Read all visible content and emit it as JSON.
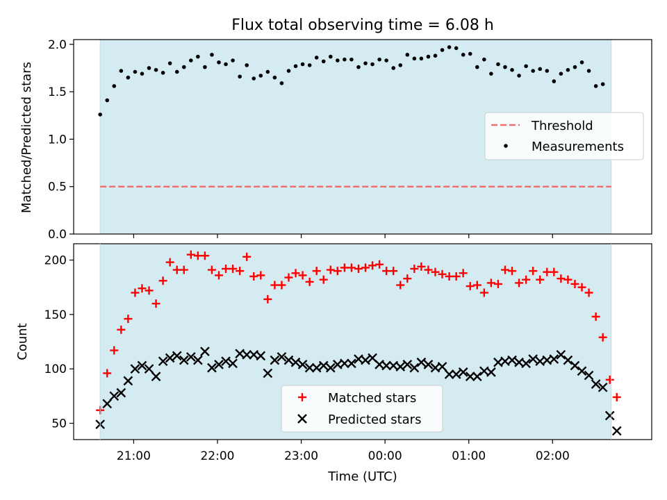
{
  "figure": {
    "title": "Flux total observing time = 6.08 h",
    "xlabel": "Time (UTC)",
    "x_tick_labels": [
      "21:00",
      "22:00",
      "23:00",
      "00:00",
      "01:00",
      "02:00"
    ],
    "shade_color": "#d4ebf1"
  },
  "chart_data": [
    {
      "type": "scatter",
      "panel": "top",
      "title": "Flux total observing time = 6.08 h",
      "ylabel": "Matched/Predicted stars",
      "xlabel": "",
      "x_axis": "time (UTC)",
      "xlim": [
        "20:17",
        "03:11"
      ],
      "ylim": [
        0,
        2.05
      ],
      "yticks": [
        0.0,
        0.5,
        1.0,
        1.5,
        2.0
      ],
      "ytick_labels": [
        "0.0",
        "0.5",
        "1.0",
        "1.5",
        "2.0"
      ],
      "shaded_range": [
        "20:36",
        "02:42"
      ],
      "legend": {
        "placement": "center-right",
        "entries": [
          "Threshold",
          "Measurements"
        ]
      },
      "series": [
        {
          "name": "Threshold",
          "kind": "line",
          "style": "dashed",
          "color": "#f07070",
          "x": [
            "20:36",
            "02:42"
          ],
          "values": [
            0.5,
            0.5
          ]
        },
        {
          "name": "Measurements",
          "kind": "scatter",
          "marker": "dot",
          "color": "#000000",
          "x": [
            "20:36",
            "20:41",
            "20:46",
            "20:51",
            "20:56",
            "21:01",
            "21:06",
            "21:11",
            "21:16",
            "21:21",
            "21:26",
            "21:31",
            "21:36",
            "21:41",
            "21:46",
            "21:51",
            "21:56",
            "22:01",
            "22:06",
            "22:11",
            "22:16",
            "22:21",
            "22:26",
            "22:31",
            "22:36",
            "22:41",
            "22:46",
            "22:51",
            "22:56",
            "23:01",
            "23:06",
            "23:11",
            "23:16",
            "23:21",
            "23:26",
            "23:31",
            "23:36",
            "23:41",
            "23:46",
            "23:51",
            "23:56",
            "00:01",
            "00:06",
            "00:11",
            "00:16",
            "00:21",
            "00:26",
            "00:31",
            "00:36",
            "00:41",
            "00:46",
            "00:51",
            "00:56",
            "01:01",
            "01:06",
            "01:11",
            "01:16",
            "01:21",
            "01:26",
            "01:31",
            "01:36",
            "01:41",
            "01:46",
            "01:51",
            "01:56",
            "02:01",
            "02:06",
            "02:11",
            "02:16",
            "02:21",
            "02:26",
            "02:31",
            "02:36"
          ],
          "values": [
            1.26,
            1.41,
            1.56,
            1.72,
            1.65,
            1.71,
            1.69,
            1.75,
            1.73,
            1.7,
            1.8,
            1.71,
            1.76,
            1.83,
            1.87,
            1.76,
            1.89,
            1.81,
            1.79,
            1.83,
            1.66,
            1.78,
            1.64,
            1.67,
            1.71,
            1.65,
            1.59,
            1.72,
            1.77,
            1.79,
            1.78,
            1.86,
            1.82,
            1.87,
            1.83,
            1.84,
            1.84,
            1.76,
            1.8,
            1.79,
            1.84,
            1.83,
            1.75,
            1.78,
            1.89,
            1.85,
            1.85,
            1.87,
            1.88,
            1.94,
            1.97,
            1.96,
            1.89,
            1.9,
            1.76,
            1.84,
            1.69,
            1.79,
            1.76,
            1.73,
            1.67,
            1.77,
            1.72,
            1.74,
            1.72,
            1.61,
            1.69,
            1.73,
            1.76,
            1.81,
            1.72,
            1.56,
            1.58
          ]
        }
      ]
    },
    {
      "type": "scatter",
      "panel": "bottom",
      "ylabel": "Count",
      "xlabel": "Time (UTC)",
      "x_axis": "time (UTC)",
      "xlim": [
        "20:17",
        "03:11"
      ],
      "ylim": [
        35,
        215
      ],
      "yticks": [
        50,
        100,
        150,
        200
      ],
      "ytick_labels": [
        "50",
        "100",
        "150",
        "200"
      ],
      "shaded_range": [
        "20:36",
        "02:42"
      ],
      "legend": {
        "placement": "lower-center",
        "entries": [
          "Matched stars",
          "Predicted stars"
        ]
      },
      "series": [
        {
          "name": "Matched stars",
          "kind": "scatter",
          "marker": "plus",
          "color": "#ff0000",
          "x": [
            "20:36",
            "20:41",
            "20:46",
            "20:51",
            "20:56",
            "21:01",
            "21:06",
            "21:11",
            "21:16",
            "21:21",
            "21:26",
            "21:31",
            "21:36",
            "21:41",
            "21:46",
            "21:51",
            "21:56",
            "22:01",
            "22:06",
            "22:11",
            "22:16",
            "22:21",
            "22:26",
            "22:31",
            "22:36",
            "22:41",
            "22:46",
            "22:51",
            "22:56",
            "23:01",
            "23:06",
            "23:11",
            "23:16",
            "23:21",
            "23:26",
            "23:31",
            "23:36",
            "23:41",
            "23:46",
            "23:51",
            "23:56",
            "00:01",
            "00:06",
            "00:11",
            "00:16",
            "00:21",
            "00:26",
            "00:31",
            "00:36",
            "00:41",
            "00:46",
            "00:51",
            "00:56",
            "01:01",
            "01:06",
            "01:11",
            "01:16",
            "01:21",
            "01:26",
            "01:31",
            "01:36",
            "01:41",
            "01:46",
            "01:51",
            "01:56",
            "02:01",
            "02:06",
            "02:11",
            "02:16",
            "02:21",
            "02:26",
            "02:31",
            "02:36",
            "02:41",
            "02:46"
          ],
          "values": [
            62,
            96,
            117,
            136,
            146,
            170,
            174,
            172,
            160,
            181,
            198,
            191,
            191,
            205,
            204,
            204,
            191,
            186,
            192,
            192,
            190,
            203,
            185,
            186,
            164,
            177,
            177,
            184,
            188,
            186,
            180,
            190,
            182,
            191,
            190,
            193,
            193,
            192,
            193,
            195,
            196,
            190,
            190,
            177,
            183,
            192,
            194,
            191,
            189,
            187,
            185,
            185,
            188,
            176,
            177,
            170,
            179,
            178,
            191,
            190,
            179,
            182,
            190,
            182,
            189,
            189,
            183,
            182,
            178,
            175,
            170,
            148,
            129,
            90,
            74
          ]
        },
        {
          "name": "Predicted stars",
          "kind": "scatter",
          "marker": "x",
          "color": "#000000",
          "x": [
            "20:36",
            "20:41",
            "20:46",
            "20:51",
            "20:56",
            "21:01",
            "21:06",
            "21:11",
            "21:16",
            "21:21",
            "21:26",
            "21:31",
            "21:36",
            "21:41",
            "21:46",
            "21:51",
            "21:56",
            "22:01",
            "22:06",
            "22:11",
            "22:16",
            "22:21",
            "22:26",
            "22:31",
            "22:36",
            "22:41",
            "22:46",
            "22:51",
            "22:56",
            "23:01",
            "23:06",
            "23:11",
            "23:16",
            "23:21",
            "23:26",
            "23:31",
            "23:36",
            "23:41",
            "23:46",
            "23:51",
            "23:56",
            "00:01",
            "00:06",
            "00:11",
            "00:16",
            "00:21",
            "00:26",
            "00:31",
            "00:36",
            "00:41",
            "00:46",
            "00:51",
            "00:56",
            "01:01",
            "01:06",
            "01:11",
            "01:16",
            "01:21",
            "01:26",
            "01:31",
            "01:36",
            "01:41",
            "01:46",
            "01:51",
            "01:56",
            "02:01",
            "02:06",
            "02:11",
            "02:16",
            "02:21",
            "02:26",
            "02:31",
            "02:36",
            "02:41",
            "02:46"
          ],
          "values": [
            49,
            68,
            75,
            78,
            89,
            100,
            103,
            100,
            93,
            107,
            110,
            112,
            108,
            111,
            108,
            116,
            101,
            104,
            107,
            105,
            114,
            113,
            113,
            112,
            96,
            108,
            111,
            108,
            106,
            104,
            101,
            101,
            103,
            101,
            104,
            105,
            105,
            109,
            108,
            110,
            104,
            103,
            103,
            102,
            104,
            101,
            106,
            104,
            101,
            102,
            95,
            95,
            97,
            93,
            93,
            98,
            97,
            106,
            107,
            108,
            106,
            105,
            109,
            107,
            108,
            109,
            113,
            108,
            103,
            98,
            94,
            86,
            83,
            57,
            43
          ]
        }
      ]
    }
  ]
}
